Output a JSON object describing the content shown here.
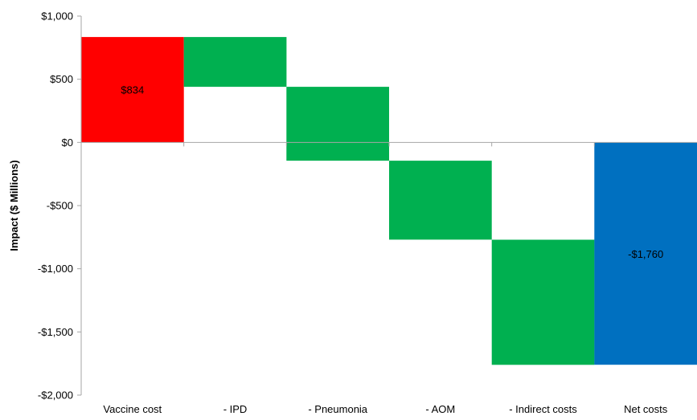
{
  "chart_data": {
    "type": "bar",
    "subtype": "waterfall",
    "title": "",
    "xlabel": "",
    "ylabel": "Impact ($ Millions)",
    "ylim": [
      -2000,
      1000
    ],
    "yticks": [
      1000,
      500,
      0,
      -500,
      -1000,
      -1500,
      -2000
    ],
    "ytick_labels": [
      "$1,000",
      "$500",
      "$0",
      "-$500",
      "-$1,000",
      "-$1,500",
      "-$2,000"
    ],
    "grid": false,
    "legend": "none",
    "categories": [
      "Vaccine cost",
      "- IPD",
      "- Pneumonia",
      "- AOM",
      "- Indirect costs",
      "Net costs"
    ],
    "bars": [
      {
        "category": "Vaccine cost",
        "start": 0,
        "end": 834,
        "color": "#ff0000",
        "label": "$834"
      },
      {
        "category": "- IPD",
        "start": 834,
        "end": 440,
        "color": "#00b050",
        "label": ""
      },
      {
        "category": "- Pneumonia",
        "start": 440,
        "end": -145,
        "color": "#00b050",
        "label": ""
      },
      {
        "category": "- AOM",
        "start": -145,
        "end": -770,
        "color": "#00b050",
        "label": ""
      },
      {
        "category": "- Indirect costs",
        "start": -770,
        "end": -1760,
        "color": "#00b050",
        "label": ""
      },
      {
        "category": "Net costs",
        "start": 0,
        "end": -1760,
        "color": "#0070c0",
        "label": "-$1,760"
      }
    ],
    "colors": {
      "cost": "#ff0000",
      "savings": "#00b050",
      "net": "#0070c0",
      "axis": "#a6a6a6"
    }
  }
}
